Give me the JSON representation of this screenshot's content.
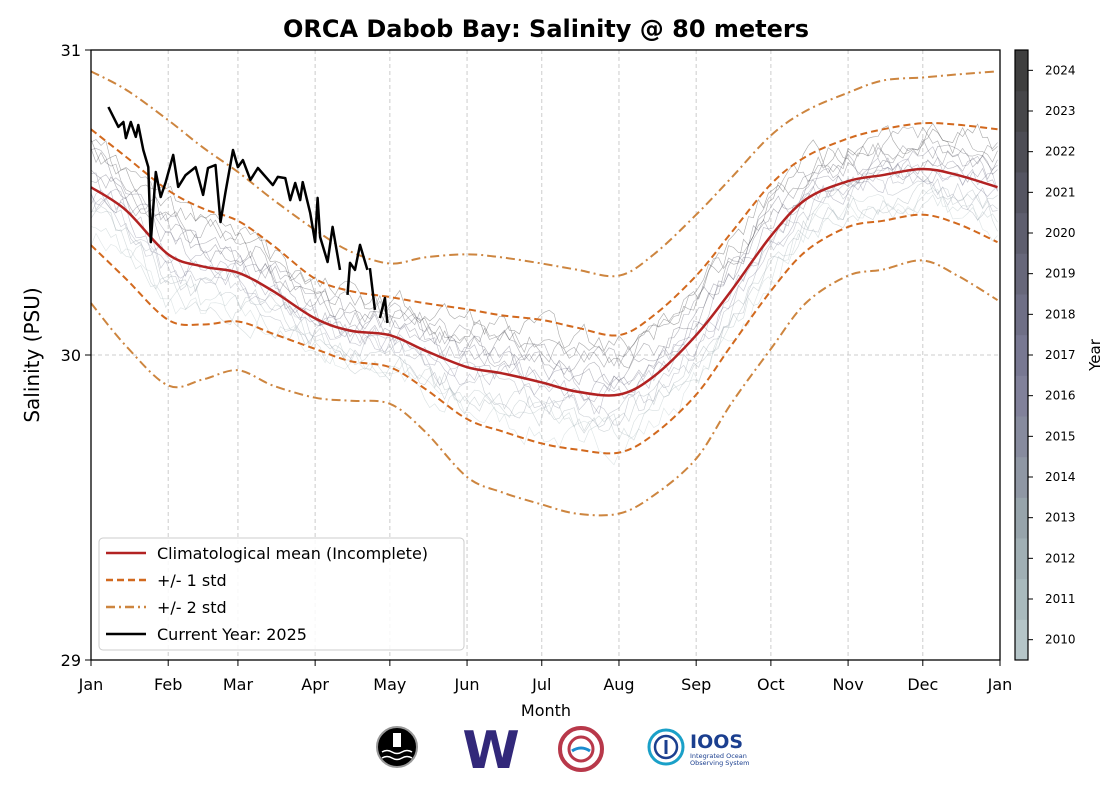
{
  "chart_data": {
    "type": "line",
    "title": "ORCA Dabob Bay: Salinity @ 80 meters",
    "xlabel": "Month",
    "ylabel": "Salinity (PSU)",
    "ylim": [
      29,
      31
    ],
    "yticks": [
      "29",
      "30",
      "31"
    ],
    "xticks": [
      "Jan",
      "Feb",
      "Mar",
      "Apr",
      "May",
      "Jun",
      "Jul",
      "Aug",
      "Sep",
      "Oct",
      "Nov",
      "Dec",
      "Jan"
    ],
    "grid": true,
    "legend_placement": "lower-left",
    "colorbar": {
      "label": "Year",
      "ticks": [
        "2010",
        "2011",
        "2012",
        "2013",
        "2014",
        "2015",
        "2016",
        "2017",
        "2018",
        "2019",
        "2020",
        "2021",
        "2022",
        "2023",
        "2024"
      ],
      "colors": [
        "#b5c5c8",
        "#a9babd",
        "#a0afb4",
        "#97a4ab",
        "#8f97a4",
        "#878b9e",
        "#81819a",
        "#787892",
        "#6f6f86",
        "#67677a",
        "#5e5e6e",
        "#555562",
        "#4d4d55",
        "#464649",
        "#3f3f3f"
      ]
    },
    "climatology_dates": [
      "01-01",
      "01-15",
      "02-01",
      "02-15",
      "03-01",
      "03-15",
      "04-01",
      "04-15",
      "05-01",
      "05-15",
      "06-01",
      "06-15",
      "07-01",
      "07-15",
      "08-01",
      "08-15",
      "09-01",
      "09-15",
      "10-01",
      "10-15",
      "11-01",
      "11-15",
      "12-01",
      "12-15",
      "12-31"
    ],
    "series": [
      {
        "name": "Climatological mean (Incomplete)",
        "color": "#b22222",
        "style": "solid",
        "values": [
          30.55,
          30.475,
          30.33,
          30.29,
          30.27,
          30.21,
          30.12,
          30.08,
          30.065,
          30.015,
          29.96,
          29.94,
          29.91,
          29.88,
          29.87,
          29.93,
          30.065,
          30.21,
          30.39,
          30.51,
          30.57,
          30.59,
          30.61,
          30.59,
          30.55
        ]
      },
      {
        "name": "+/- 1 std",
        "color": "#d2691e",
        "style": "dashed",
        "upper": [
          30.74,
          30.65,
          30.54,
          30.48,
          30.44,
          30.36,
          30.25,
          30.21,
          30.19,
          30.17,
          30.15,
          30.13,
          30.115,
          30.09,
          30.065,
          30.13,
          30.26,
          30.4,
          30.56,
          30.65,
          30.71,
          30.74,
          30.76,
          30.755,
          30.74
        ],
        "lower": [
          30.36,
          30.25,
          30.115,
          30.1,
          30.11,
          30.07,
          30.02,
          29.98,
          29.96,
          29.89,
          29.79,
          29.75,
          29.71,
          29.69,
          29.68,
          29.74,
          29.87,
          30.03,
          30.21,
          30.34,
          30.42,
          30.44,
          30.46,
          30.43,
          30.37
        ]
      },
      {
        "name": "+/- 2 std",
        "color": "#cd853f",
        "style": "dashdot",
        "upper": [
          30.93,
          30.87,
          30.77,
          30.68,
          30.6,
          30.51,
          30.41,
          30.34,
          30.3,
          30.32,
          30.33,
          30.32,
          30.3,
          30.28,
          30.26,
          30.33,
          30.46,
          30.58,
          30.72,
          30.8,
          30.86,
          30.9,
          30.91,
          30.92,
          30.93
        ],
        "lower": [
          30.17,
          30.03,
          29.9,
          29.92,
          29.95,
          29.9,
          29.86,
          29.85,
          29.84,
          29.75,
          29.6,
          29.55,
          29.51,
          29.48,
          29.48,
          29.54,
          29.66,
          29.84,
          30.02,
          30.17,
          30.26,
          30.28,
          30.31,
          30.26,
          30.18
        ]
      },
      {
        "name": "Current Year: 2025",
        "color": "#000000",
        "style": "solid",
        "dates": [
          "2025-01-08",
          "2025-01-12",
          "2025-01-14",
          "2025-01-15",
          "2025-01-17",
          "2025-01-19",
          "2025-01-20",
          "2025-01-22",
          "2025-01-24",
          "2025-01-25",
          "2025-01-27",
          "2025-01-29",
          "2025-01-31",
          "2025-02-03",
          "2025-02-05",
          "2025-02-08",
          "2025-02-12",
          "2025-02-15",
          "2025-02-17",
          "2025-02-20",
          "2025-02-22",
          "2025-02-24",
          "2025-02-27",
          "2025-03-01",
          "2025-03-03",
          "2025-03-06",
          "2025-03-09",
          "2025-03-15",
          "2025-03-17",
          "2025-03-20",
          "2025-03-22",
          "2025-03-24",
          "2025-03-26",
          "2025-03-27",
          "2025-03-30",
          "2025-04-01",
          "2025-04-02",
          "2025-04-03",
          "2025-04-06",
          "2025-04-08",
          "2025-04-11",
          "2025-04-12",
          "2025-04-14",
          "2025-04-15",
          "2025-04-17",
          "2025-04-19",
          "2025-04-22",
          "2025-04-22",
          "2025-04-23",
          "2025-04-25",
          "2025-04-26",
          "2025-04-27",
          "2025-04-29",
          "2025-04-30"
        ],
        "values": [
          30.813,
          30.748,
          30.764,
          30.711,
          30.764,
          30.715,
          30.754,
          30.672,
          30.616,
          30.37,
          30.6,
          30.518,
          30.567,
          30.656,
          30.551,
          30.59,
          30.616,
          30.525,
          30.613,
          30.623,
          30.436,
          30.534,
          30.672,
          30.616,
          30.639,
          30.574,
          30.613,
          30.557,
          30.584,
          30.58,
          30.508,
          30.564,
          30.508,
          30.567,
          30.466,
          30.37,
          30.515,
          30.387,
          30.305,
          30.42,
          30.279,
          null,
          30.197,
          30.302,
          30.279,
          30.361,
          30.279,
          null,
          30.285,
          30.148,
          null,
          30.121,
          30.187,
          30.105
        ]
      }
    ]
  },
  "logos": {
    "ukiah": "ORCA buoy logo",
    "uw": "W",
    "tribal": "NANOOS logo",
    "ioos_title": "IOOS",
    "ioos_sub1": "Integrated Ocean",
    "ioos_sub2": "Observing System"
  }
}
